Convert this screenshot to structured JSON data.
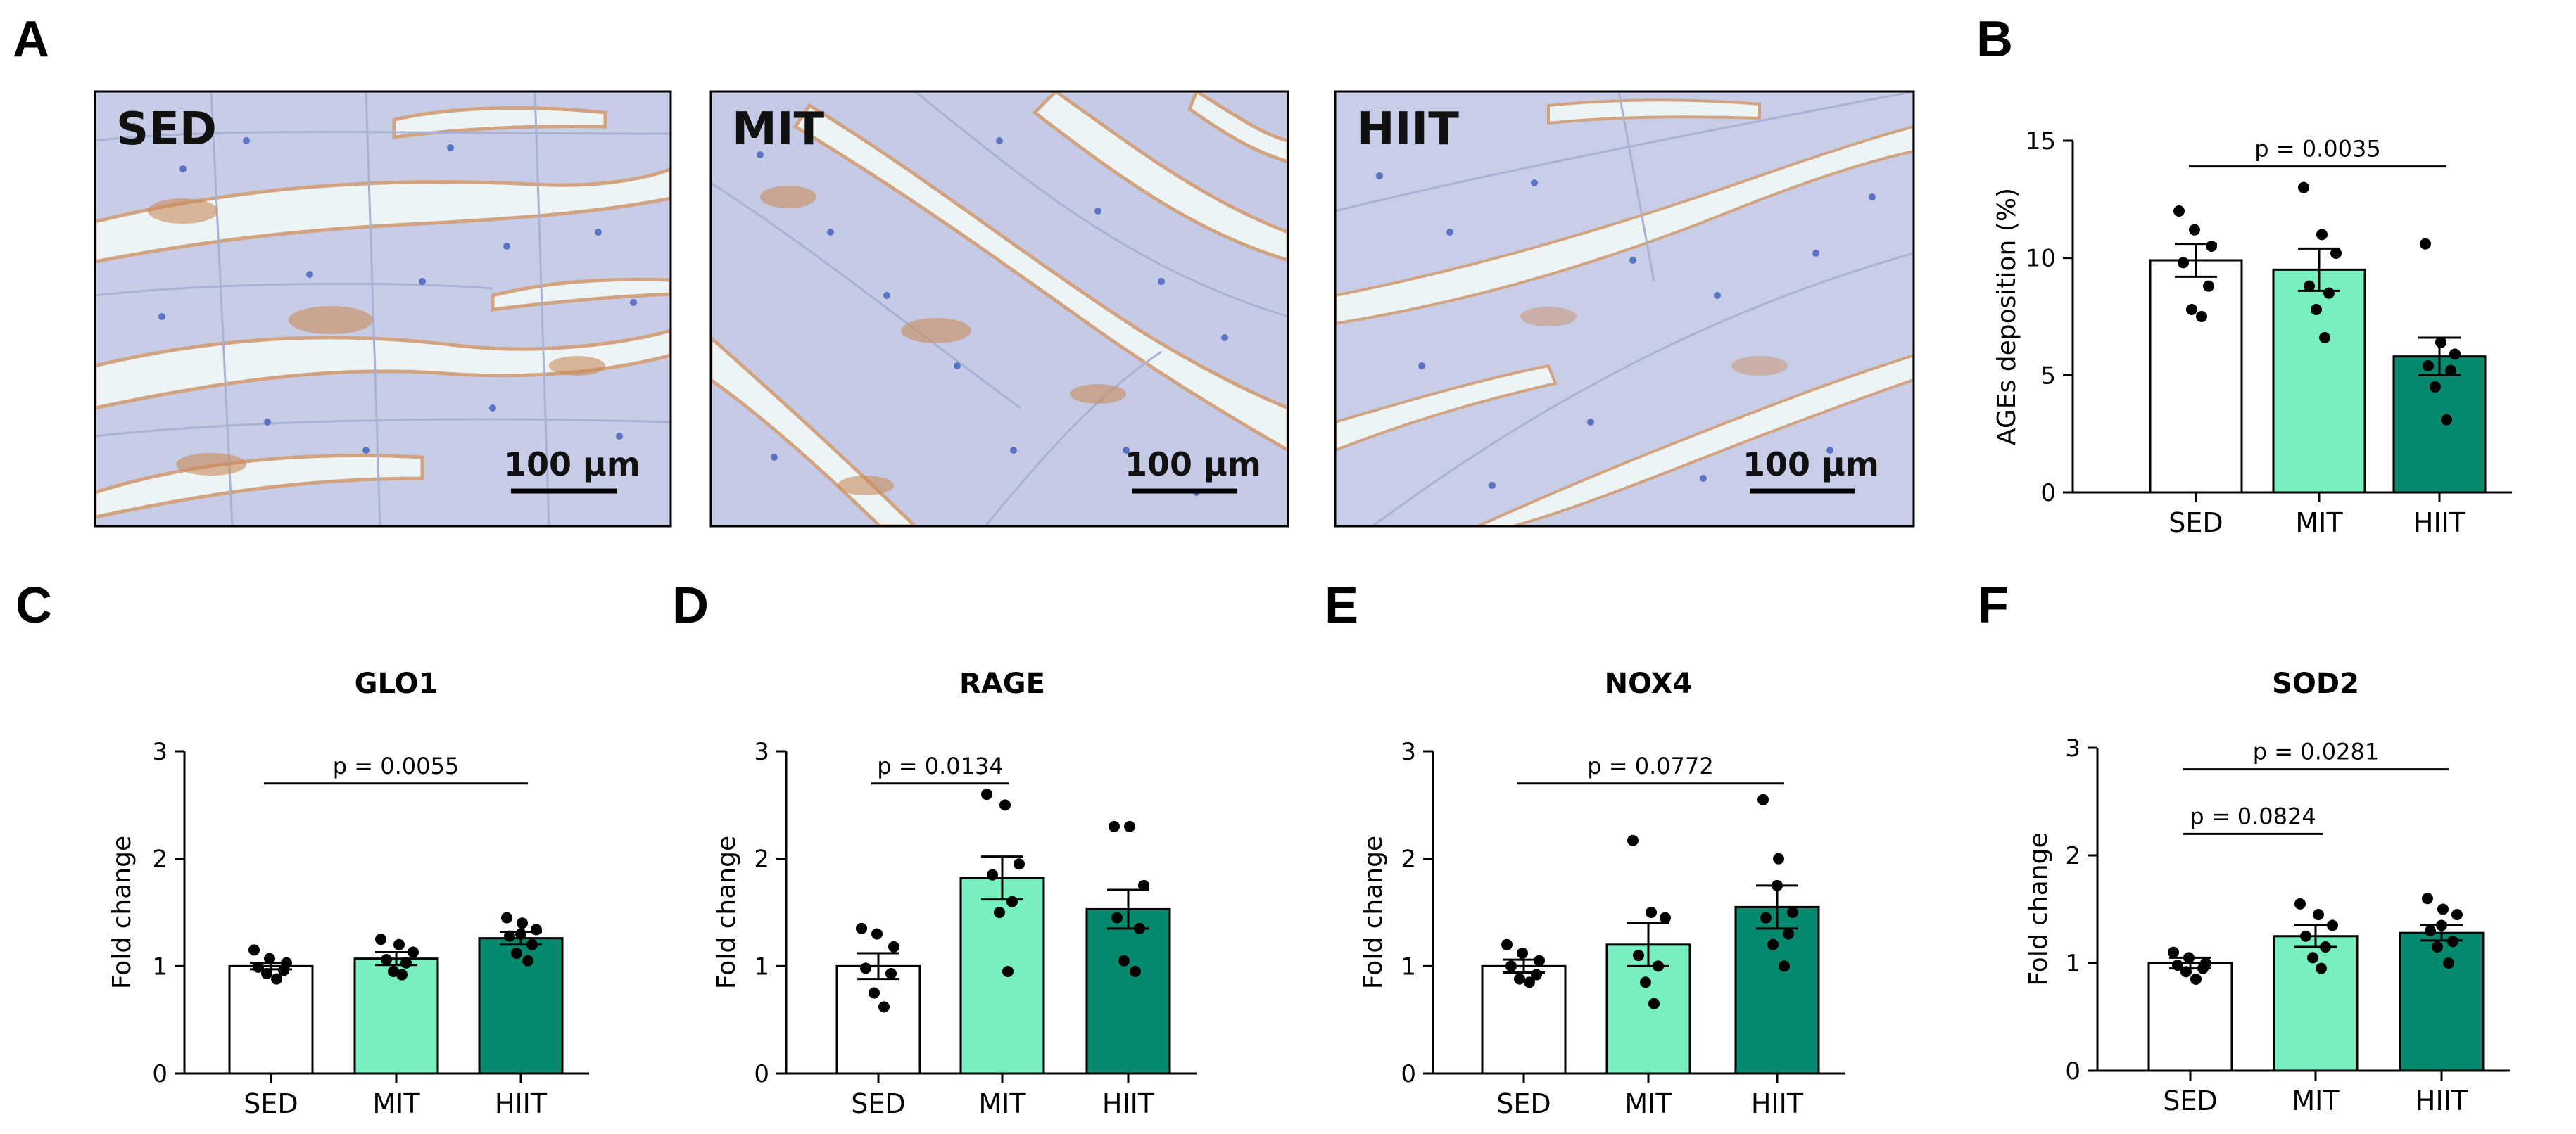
{
  "panel_labels": [
    "A",
    "B",
    "C",
    "D",
    "E",
    "F"
  ],
  "micrographs": {
    "labels": [
      "SED",
      "MIT",
      "HIIT"
    ],
    "scale_bar_label": "100 µm"
  },
  "colors": {
    "SED": "#ffffff",
    "MIT": "#77efbf",
    "HIIT": "#058a6d",
    "tissue": "#c6cde6",
    "stain": "#c98a5a",
    "background_space": "#eef4f6"
  },
  "chart_data": [
    {
      "panel": "B",
      "type": "bar",
      "title": "",
      "ylabel": "AGEs deposition (%)",
      "xlabel": "",
      "ylim": [
        0,
        15
      ],
      "yticks": [
        0,
        5,
        10,
        15
      ],
      "categories": [
        "SED",
        "MIT",
        "HIIT"
      ],
      "values": [
        9.9,
        9.5,
        5.8
      ],
      "sem": [
        0.7,
        0.9,
        0.8
      ],
      "points": [
        [
          12.0,
          11.2,
          10.5,
          9.8,
          8.8,
          7.8,
          7.5
        ],
        [
          13.0,
          11.0,
          10.2,
          8.8,
          8.5,
          7.8,
          6.6
        ],
        [
          10.6,
          6.4,
          5.9,
          5.4,
          5.2,
          4.5,
          3.1
        ]
      ],
      "comparisons": [
        {
          "from": 0,
          "to": 2,
          "label": "p = 0.0035",
          "y": 13.9
        }
      ]
    },
    {
      "panel": "C",
      "type": "bar",
      "title": "GLO1",
      "ylabel": "Fold change",
      "xlabel": "",
      "ylim": [
        0,
        3
      ],
      "yticks": [
        0,
        1,
        2,
        3
      ],
      "categories": [
        "SED",
        "MIT",
        "HIIT"
      ],
      "values": [
        1.0,
        1.07,
        1.26
      ],
      "sem": [
        0.03,
        0.06,
        0.06
      ],
      "points": [
        [
          1.15,
          1.07,
          1.03,
          0.99,
          0.96,
          0.93,
          0.88
        ],
        [
          1.25,
          1.2,
          1.13,
          1.06,
          1.03,
          0.95,
          0.92
        ],
        [
          1.45,
          1.4,
          1.34,
          1.28,
          1.2,
          1.12,
          1.05,
          1.3
        ]
      ],
      "comparisons": [
        {
          "from": 0,
          "to": 2,
          "label": "p = 0.0055",
          "y": 2.7
        }
      ]
    },
    {
      "panel": "D",
      "type": "bar",
      "title": "RAGE",
      "ylabel": "Fold change",
      "xlabel": "",
      "ylim": [
        0,
        3
      ],
      "yticks": [
        0,
        1,
        2,
        3
      ],
      "categories": [
        "SED",
        "MIT",
        "HIIT"
      ],
      "values": [
        1.0,
        1.82,
        1.53
      ],
      "sem": [
        0.12,
        0.2,
        0.18
      ],
      "points": [
        [
          1.35,
          1.3,
          1.18,
          0.98,
          0.93,
          0.75,
          0.62
        ],
        [
          2.6,
          2.5,
          1.95,
          1.85,
          1.6,
          1.5,
          0.95
        ],
        [
          2.3,
          2.3,
          1.75,
          1.45,
          1.35,
          1.05,
          0.95
        ]
      ],
      "comparisons": [
        {
          "from": 0,
          "to": 1,
          "label": "p = 0.0134",
          "y": 2.7
        }
      ]
    },
    {
      "panel": "E",
      "type": "bar",
      "title": "NOX4",
      "ylabel": "Fold change",
      "xlabel": "",
      "ylim": [
        0,
        3
      ],
      "yticks": [
        0,
        1,
        2,
        3
      ],
      "categories": [
        "SED",
        "MIT",
        "HIIT"
      ],
      "values": [
        1.0,
        1.2,
        1.55
      ],
      "sem": [
        0.06,
        0.2,
        0.2
      ],
      "points": [
        [
          1.2,
          1.12,
          1.05,
          1.0,
          0.92,
          0.88,
          0.85
        ],
        [
          2.17,
          1.5,
          1.45,
          1.1,
          1.0,
          0.85,
          0.65
        ],
        [
          2.55,
          2.0,
          1.5,
          1.45,
          1.3,
          1.2,
          1.0,
          1.75
        ]
      ],
      "comparisons": [
        {
          "from": 0,
          "to": 2,
          "label": "p = 0.0772",
          "y": 2.7
        }
      ]
    },
    {
      "panel": "F",
      "type": "bar",
      "title": "SOD2",
      "ylabel": "Fold change",
      "xlabel": "",
      "ylim": [
        0,
        3
      ],
      "yticks": [
        0,
        1,
        2,
        3
      ],
      "categories": [
        "SED",
        "MIT",
        "HIIT"
      ],
      "values": [
        1.0,
        1.25,
        1.28
      ],
      "sem": [
        0.05,
        0.1,
        0.07
      ],
      "points": [
        [
          1.1,
          1.05,
          1.0,
          0.98,
          0.95,
          0.92,
          0.85
        ],
        [
          1.55,
          1.45,
          1.35,
          1.25,
          1.15,
          1.05,
          0.95
        ],
        [
          1.6,
          1.5,
          1.45,
          1.3,
          1.2,
          1.15,
          1.0,
          1.35
        ]
      ],
      "comparisons": [
        {
          "from": 0,
          "to": 1,
          "label": "p = 0.0824",
          "y": 2.2
        },
        {
          "from": 0,
          "to": 2,
          "label": "p = 0.0281",
          "y": 2.8
        }
      ]
    }
  ]
}
